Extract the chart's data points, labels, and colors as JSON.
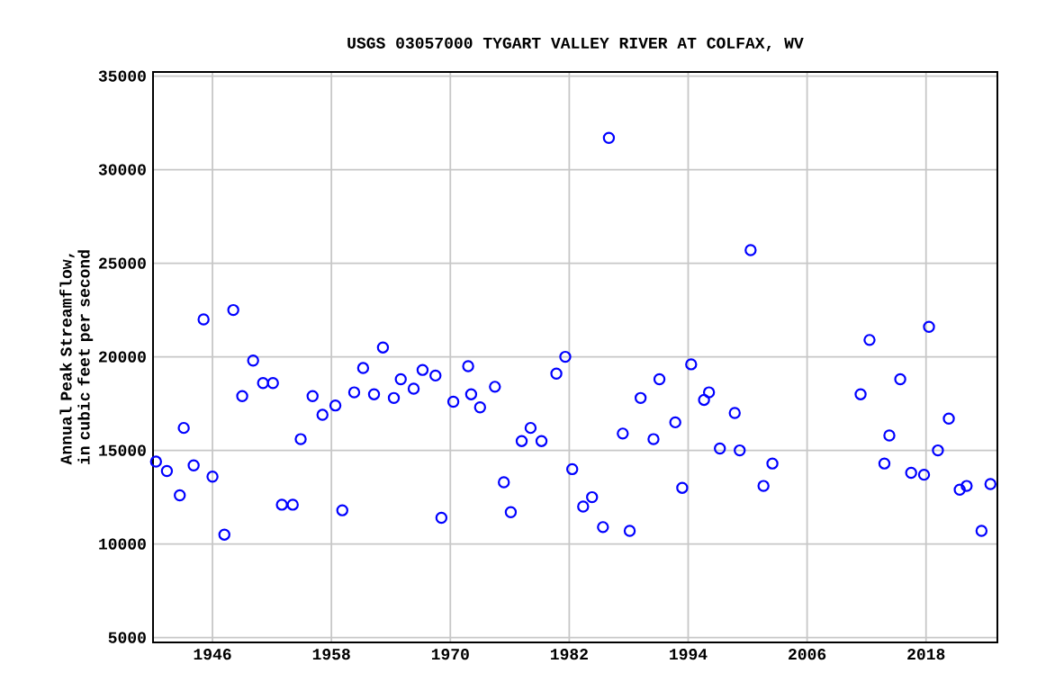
{
  "chart_data": {
    "type": "scatter",
    "title": "USGS 03057000 TYGART VALLEY RIVER AT COLFAX, WV",
    "ylabel": "Annual Peak Streamflow, in cubic feet per second",
    "x": [
      1940.3,
      1941.4,
      1942.7,
      1943.1,
      1944.1,
      1945.1,
      1946.0,
      1947.2,
      1948.1,
      1949.0,
      1950.1,
      1951.1,
      1952.1,
      1953.0,
      1954.1,
      1954.9,
      1956.1,
      1957.1,
      1958.4,
      1959.1,
      1960.3,
      1961.2,
      1962.3,
      1963.2,
      1964.3,
      1965.0,
      1966.3,
      1967.2,
      1968.5,
      1969.1,
      1970.3,
      1971.8,
      1972.1,
      1973.0,
      1974.5,
      1975.4,
      1976.1,
      1977.2,
      1978.1,
      1979.2,
      1980.7,
      1981.6,
      1982.3,
      1983.4,
      1984.3,
      1985.4,
      1986.0,
      1987.4,
      1988.1,
      1989.2,
      1990.5,
      1991.1,
      1992.7,
      1993.4,
      1994.3,
      1995.6,
      1996.1,
      1997.2,
      1998.7,
      1999.2,
      2000.3,
      2001.6,
      2002.5,
      2011.4,
      2012.3,
      2013.8,
      2014.3,
      2015.4,
      2016.5,
      2017.8,
      2018.3,
      2019.2,
      2020.3,
      2021.4,
      2022.1,
      2023.6,
      2024.5
    ],
    "values": [
      14400,
      13900,
      12600,
      16200,
      14200,
      22000,
      13600,
      10500,
      22500,
      17900,
      19800,
      18600,
      18600,
      12100,
      12100,
      15600,
      17900,
      16900,
      17400,
      11800,
      18100,
      19400,
      18000,
      20500,
      17800,
      18800,
      18300,
      19300,
      19000,
      11400,
      17600,
      19500,
      18000,
      17300,
      18400,
      13300,
      11700,
      15500,
      16200,
      15500,
      19100,
      20000,
      14000,
      12000,
      12500,
      10900,
      31700,
      15900,
      10700,
      17800,
      15600,
      18800,
      16500,
      13000,
      19600,
      17700,
      18100,
      15100,
      17000,
      15000,
      25700,
      13100,
      14300,
      18000,
      20900,
      14300,
      15800,
      18800,
      13800,
      13700,
      21600,
      15000,
      16700,
      12900,
      13100,
      10700,
      13200
    ],
    "color": "#0000ff",
    "marker": "circle",
    "grid": true,
    "xlim": [
      1940,
      2025.2
    ],
    "xticks": [
      1946,
      1958,
      1970,
      1982,
      1994,
      2006,
      2018
    ],
    "ylim": [
      4740,
      35220
    ],
    "yticks": [
      5000,
      10000,
      15000,
      20000,
      25000,
      30000,
      35000
    ]
  }
}
